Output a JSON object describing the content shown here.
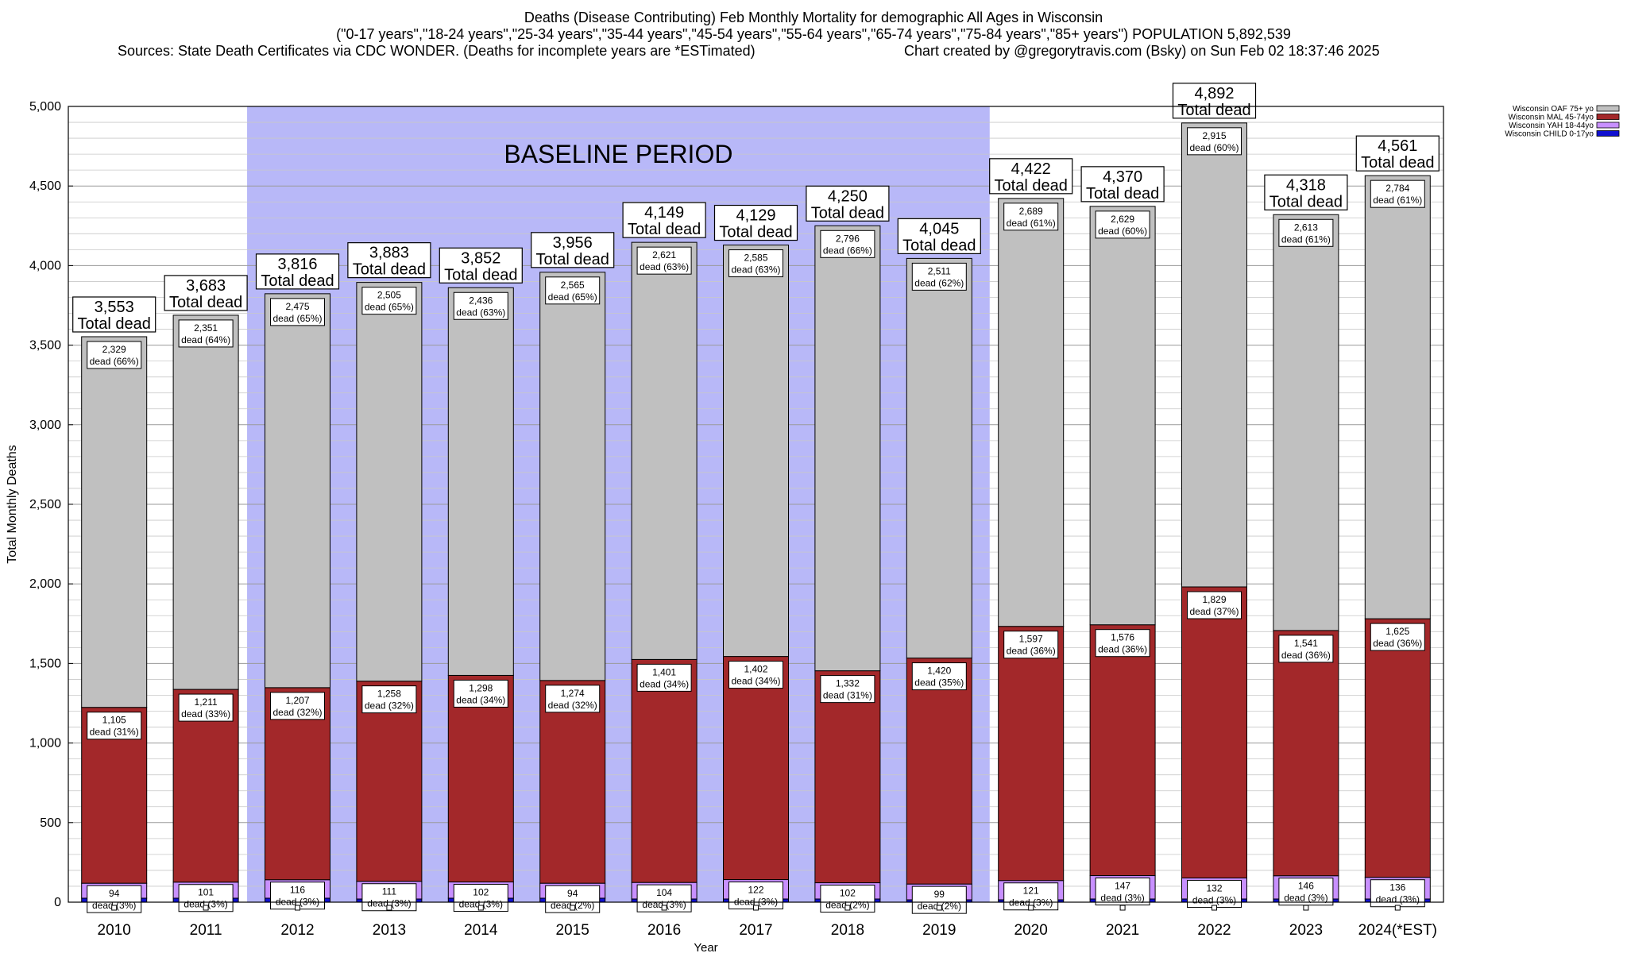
{
  "header": {
    "title": "Deaths (Disease Contributing) Feb Monthly Mortality for demographic All Ages in Wisconsin",
    "subtitle": "(\"0-17 years\",\"18-24 years\",\"25-34 years\",\"35-44 years\",\"45-54 years\",\"55-64 years\",\"65-74 years\",\"75-84 years\",\"85+ years\") POPULATION 5,892,539",
    "sources": "Sources: State Death Certificates via CDC WONDER. (Deaths for incomplete years are *ESTimated)",
    "credit": "Chart created by @gregorytravis.com (Bsky) on Sun Feb 02 18:37:46 2025"
  },
  "chart_data": {
    "type": "bar",
    "stacked": true,
    "xlabel": "Year",
    "ylabel": "Total Monthly Deaths",
    "ylim": [
      0,
      5000
    ],
    "yticks": [
      0,
      500,
      1000,
      1500,
      2000,
      2500,
      3000,
      3500,
      4000,
      4500,
      5000
    ],
    "ytick_labels": [
      "0",
      "500",
      "1,000",
      "1,500",
      "2,000",
      "2,500",
      "3,000",
      "3,500",
      "4,000",
      "4,500",
      "5,000"
    ],
    "grid": true,
    "legend_position": "top-right",
    "baseline_label": "BASELINE PERIOD",
    "baseline_categories": [
      "2012",
      "2019"
    ],
    "baseline_color": "#b8b8f8",
    "total_suffix": "Total dead",
    "dead_word": "dead",
    "categories": [
      "2010",
      "2011",
      "2012",
      "2013",
      "2014",
      "2015",
      "2016",
      "2017",
      "2018",
      "2019",
      "2020",
      "2021",
      "2022",
      "2023",
      "2024(*EST)"
    ],
    "totals": [
      3553,
      3683,
      3816,
      3883,
      3852,
      3956,
      4149,
      4129,
      4250,
      4045,
      4422,
      4370,
      4892,
      4318,
      4561
    ],
    "series": [
      {
        "name": "Wisconsin CHILD 0-17yo",
        "color": "#1010d0",
        "values": [
          25,
          25,
          25,
          20,
          25,
          25,
          20,
          20,
          20,
          15,
          15,
          20,
          20,
          20,
          20
        ]
      },
      {
        "name": "Wisconsin YAH 18-44yo",
        "color": "#c890ff",
        "values": [
          94,
          101,
          116,
          111,
          102,
          94,
          104,
          122,
          102,
          99,
          121,
          147,
          132,
          146,
          136
        ],
        "pct": [
          3,
          3,
          3,
          3,
          3,
          2,
          3,
          3,
          2,
          2,
          3,
          3,
          3,
          3,
          3
        ]
      },
      {
        "name": "Wisconsin MAL 45-74yo",
        "color": "#a3282a",
        "values": [
          1105,
          1211,
          1207,
          1258,
          1298,
          1274,
          1401,
          1402,
          1332,
          1420,
          1597,
          1576,
          1829,
          1541,
          1625
        ],
        "pct": [
          31,
          33,
          32,
          32,
          34,
          32,
          34,
          34,
          31,
          35,
          36,
          36,
          37,
          36,
          36
        ]
      },
      {
        "name": "Wisconsin OAF 75+ yo",
        "color": "#c0c0c0",
        "values": [
          2329,
          2351,
          2475,
          2505,
          2436,
          2565,
          2621,
          2585,
          2796,
          2511,
          2689,
          2629,
          2915,
          2613,
          2784
        ],
        "pct": [
          66,
          64,
          65,
          65,
          63,
          65,
          63,
          63,
          66,
          62,
          61,
          60,
          60,
          61,
          61
        ]
      }
    ]
  }
}
